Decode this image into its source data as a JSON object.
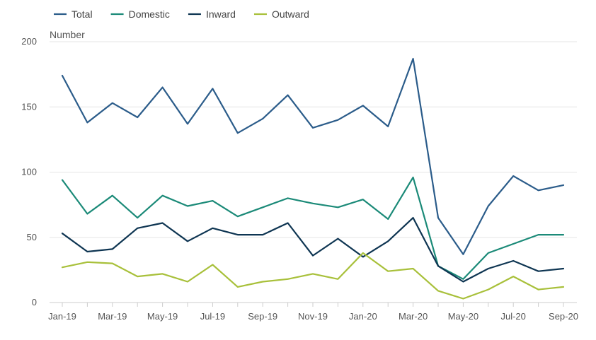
{
  "chart_data": {
    "type": "line",
    "ylabel": "Number",
    "ylim": [
      0,
      200
    ],
    "yticks": [
      0,
      50,
      100,
      150,
      200
    ],
    "grid": true,
    "legend_position": "top-left",
    "categories": [
      "Jan-19",
      "Feb-19",
      "Mar-19",
      "Apr-19",
      "May-19",
      "Jun-19",
      "Jul-19",
      "Aug-19",
      "Sep-19",
      "Oct-19",
      "Nov-19",
      "Dec-19",
      "Jan-20",
      "Feb-20",
      "Mar-20",
      "Apr-20",
      "May-20",
      "Jun-20",
      "Jul-20",
      "Aug-20",
      "Sep-20"
    ],
    "xtick_labels": [
      "Jan-19",
      "Mar-19",
      "May-19",
      "Jul-19",
      "Sep-19",
      "Nov-19",
      "Jan-20",
      "Mar-20",
      "May-20",
      "Jul-20",
      "Sep-20"
    ],
    "series": [
      {
        "name": "Total",
        "color": "#2b5c8a",
        "values": [
          174,
          138,
          153,
          142,
          165,
          137,
          164,
          130,
          141,
          159,
          134,
          140,
          151,
          135,
          187,
          65,
          37,
          74,
          97,
          86,
          90
        ]
      },
      {
        "name": "Domestic",
        "color": "#1b8a78",
        "values": [
          94,
          68,
          82,
          65,
          82,
          74,
          78,
          66,
          73,
          80,
          76,
          73,
          79,
          64,
          96,
          28,
          18,
          38,
          45,
          52,
          52
        ]
      },
      {
        "name": "Inward",
        "color": "#0e3552",
        "values": [
          53,
          39,
          41,
          57,
          61,
          47,
          57,
          52,
          52,
          61,
          36,
          49,
          35,
          47,
          65,
          28,
          16,
          26,
          32,
          24,
          26
        ]
      },
      {
        "name": "Outward",
        "color": "#a8c03a",
        "values": [
          27,
          31,
          30,
          20,
          22,
          16,
          29,
          12,
          16,
          18,
          22,
          18,
          38,
          24,
          26,
          9,
          3,
          10,
          20,
          10,
          12
        ]
      }
    ]
  }
}
